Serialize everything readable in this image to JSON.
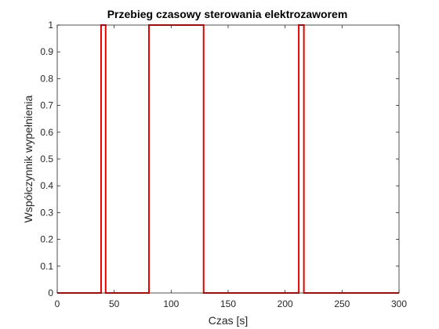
{
  "chart_data": {
    "type": "line",
    "title": "Przebieg czasowy sterowania elektrozaworem",
    "xlabel": "Czas [s]",
    "ylabel": "Współczynnik wypełnienia",
    "xlim": [
      0,
      300
    ],
    "ylim": [
      0,
      1
    ],
    "xticks": [
      0,
      50,
      100,
      150,
      200,
      250,
      300
    ],
    "yticks": [
      0,
      0.1,
      0.2,
      0.3,
      0.4,
      0.5,
      0.6,
      0.7,
      0.8,
      0.9,
      1
    ],
    "grid": false,
    "series": [
      {
        "color": "#e60000",
        "x": [
          0,
          38.5,
          38.5,
          42.5,
          42.5,
          80.5,
          80.5,
          128.5,
          128.5,
          212,
          212,
          216.5,
          216.5,
          300
        ],
        "y": [
          0,
          0,
          1,
          1,
          0,
          0,
          1,
          1,
          0,
          0,
          1,
          1,
          0,
          0
        ]
      }
    ]
  }
}
